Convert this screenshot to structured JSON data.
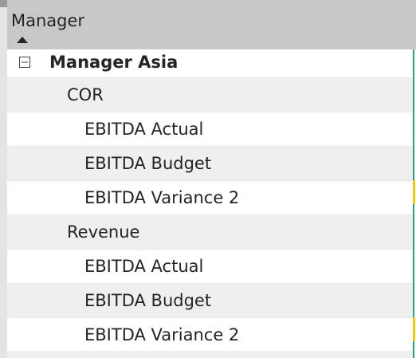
{
  "header": {
    "title": "Manager"
  },
  "rows": [
    {
      "label": "Manager Asia",
      "level": 0
    },
    {
      "label": "COR",
      "level": 1
    },
    {
      "label": "EBITDA Actual",
      "level": 2
    },
    {
      "label": "EBITDA Budget",
      "level": 2
    },
    {
      "label": "EBITDA Variance 2",
      "level": 2
    },
    {
      "label": "Revenue",
      "level": 1
    },
    {
      "label": "EBITDA Actual",
      "level": 2
    },
    {
      "label": "EBITDA Budget",
      "level": 2
    },
    {
      "label": "EBITDA Variance 2",
      "level": 2
    }
  ]
}
